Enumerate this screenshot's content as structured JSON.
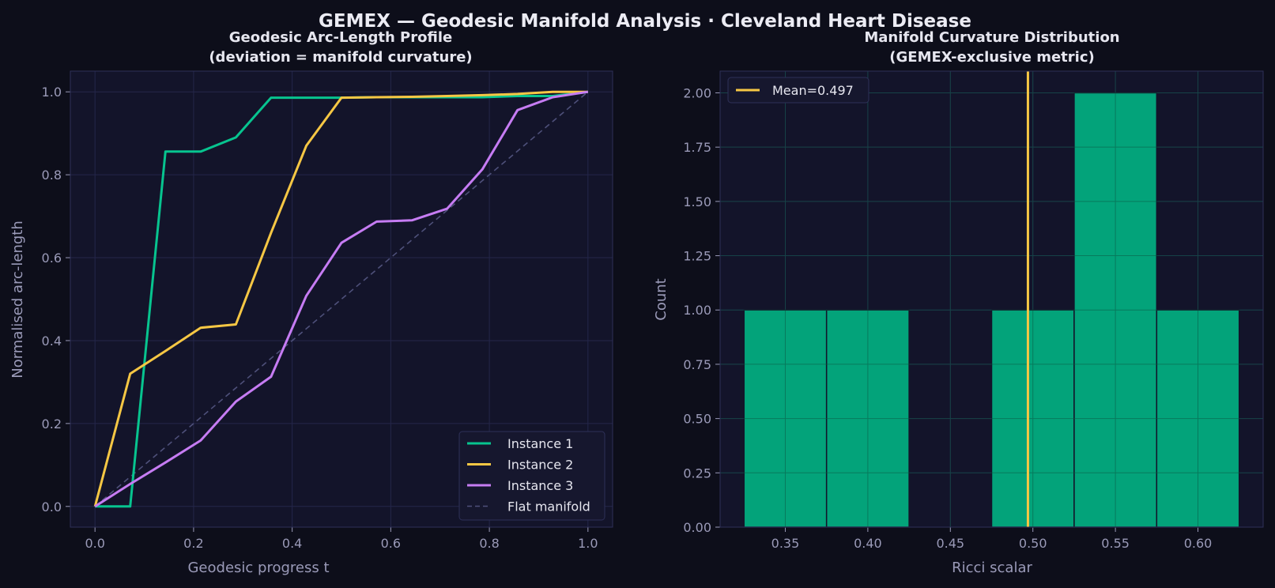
{
  "suptitle": "GEMEX — Geodesic Manifold Analysis · Cleveland Heart Disease",
  "colors": {
    "figure_bg": "#0d0e1a",
    "axes_bg": "#13142a",
    "grid": "#24264a",
    "text": "#e6e6ef",
    "tick_text": "#9a9ab8",
    "teal": "#07c48f",
    "bar": "#03a37a",
    "yellow": "#f6c744",
    "purple": "#c67cf3",
    "flat": "#4e507a"
  },
  "chart_data": [
    {
      "type": "line",
      "title_line1": "Geodesic Arc-Length Profile",
      "title_line2": "(deviation = manifold curvature)",
      "xlabel": "Geodesic progress t",
      "ylabel": "Normalised arc-length",
      "xlim": [
        -0.05,
        1.05
      ],
      "ylim": [
        -0.05,
        1.05
      ],
      "xticks": [
        "0.0",
        "0.2",
        "0.4",
        "0.6",
        "0.8",
        "1.0"
      ],
      "yticks": [
        "0.0",
        "0.2",
        "0.4",
        "0.6",
        "0.8",
        "1.0"
      ],
      "grid": true,
      "legend_loc": "lower-right",
      "series": [
        {
          "name": "Instance 1",
          "color": "#07c48f",
          "style": "solid",
          "x": [
            0,
            0.0714,
            0.1429,
            0.2143,
            0.2857,
            0.3571,
            0.4286,
            0.5,
            0.5714,
            0.6429,
            0.7143,
            0.7857,
            0.8571,
            0.9286,
            1.0
          ],
          "y": [
            0,
            0,
            0.856,
            0.856,
            0.89,
            0.986,
            0.986,
            0.986,
            0.987,
            0.987,
            0.987,
            0.987,
            0.99,
            0.99,
            1.0
          ]
        },
        {
          "name": "Instance 2",
          "color": "#f6c744",
          "style": "solid",
          "x": [
            0,
            0.0714,
            0.1429,
            0.2143,
            0.2857,
            0.3571,
            0.4286,
            0.5,
            0.5714,
            0.6429,
            0.7143,
            0.7857,
            0.8571,
            0.9286,
            1.0
          ],
          "y": [
            0,
            0.32,
            0.375,
            0.431,
            0.439,
            0.66,
            0.87,
            0.986,
            0.987,
            0.988,
            0.99,
            0.992,
            0.995,
            1.0,
            1.0
          ]
        },
        {
          "name": "Instance 3",
          "color": "#c67cf3",
          "style": "solid",
          "x": [
            0,
            0.0714,
            0.1429,
            0.2143,
            0.2857,
            0.3571,
            0.4286,
            0.5,
            0.5714,
            0.6429,
            0.7143,
            0.7857,
            0.8571,
            0.9286,
            1.0
          ],
          "y": [
            0,
            0.054,
            0.106,
            0.159,
            0.253,
            0.313,
            0.508,
            0.636,
            0.687,
            0.69,
            0.718,
            0.813,
            0.956,
            0.987,
            1.0
          ]
        },
        {
          "name": "Flat manifold",
          "color": "#4e507a",
          "style": "dashed",
          "x": [
            0,
            1.0
          ],
          "y": [
            0,
            1.0
          ]
        }
      ]
    },
    {
      "type": "bar",
      "title_line1": "Manifold Curvature Distribution",
      "title_line2": "(GEMEX-exclusive metric)",
      "xlabel": "Ricci scalar",
      "ylabel": "Count",
      "xlim": [
        0.3105,
        0.6395
      ],
      "ylim": [
        0,
        2.1
      ],
      "xticks": [
        "0.35",
        "0.40",
        "0.45",
        "0.50",
        "0.55",
        "0.60"
      ],
      "yticks": [
        "0.00",
        "0.25",
        "0.50",
        "0.75",
        "1.00",
        "1.25",
        "1.50",
        "1.75",
        "2.00"
      ],
      "grid": true,
      "bins": [
        {
          "left": 0.325,
          "right": 0.375,
          "count": 1
        },
        {
          "left": 0.375,
          "right": 0.425,
          "count": 1
        },
        {
          "left": 0.425,
          "right": 0.475,
          "count": 0
        },
        {
          "left": 0.475,
          "right": 0.525,
          "count": 1
        },
        {
          "left": 0.525,
          "right": 0.575,
          "count": 2
        },
        {
          "left": 0.575,
          "right": 0.625,
          "count": 1
        }
      ],
      "mean": 0.497,
      "mean_label": "Mean=0.497",
      "legend_loc": "upper-left"
    }
  ]
}
